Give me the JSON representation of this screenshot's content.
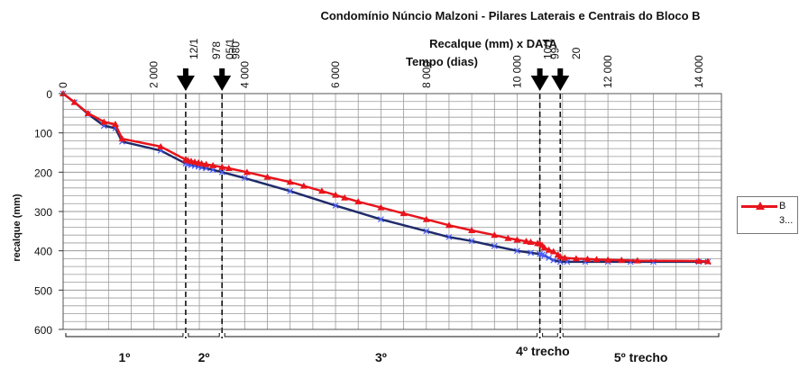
{
  "chart_data": {
    "type": "line",
    "title": "Condomínio Núncio Malzoni - Pilares Laterais e Centrais do Bloco B",
    "subtitle": "Recalque (mm) x DATA",
    "xlabel": "Tempo (dias)",
    "ylabel": "recalque (mm)",
    "xlim": [
      0,
      14500
    ],
    "ylim": [
      600,
      0
    ],
    "x_ticks": [
      "0",
      "2 000",
      "4 000",
      "6 000",
      "8 000",
      "10 000",
      "12 000",
      "14 000"
    ],
    "x_tick_values": [
      0,
      2000,
      4000,
      6000,
      8000,
      10000,
      12000,
      14000
    ],
    "y_ticks": [
      "0",
      "100",
      "200",
      "300",
      "400",
      "500",
      "600"
    ],
    "y_tick_values": [
      0,
      100,
      200,
      300,
      400,
      500,
      600
    ],
    "grid": true,
    "legend_placement": "right",
    "markers": [
      {
        "x": 2700,
        "date_label": "12/1",
        "year_label": ""
      },
      {
        "x": 3500,
        "date_label": "05/1",
        "year_label": "978"
      },
      {
        "x": 10500,
        "date_label": "10/1",
        "year_label": ""
      },
      {
        "x": 10950,
        "date_label": "",
        "year_label": "99"
      }
    ],
    "extra_top_labels": [
      {
        "x": 3800,
        "text": "980"
      },
      {
        "x": 11300,
        "text": "20"
      }
    ],
    "trechos": [
      {
        "label": "1º",
        "x_start": 0,
        "x_end": 2700
      },
      {
        "label": "2º",
        "x_start": 2700,
        "x_end": 3500
      },
      {
        "label": "3º",
        "x_start": 3500,
        "x_end": 10500
      },
      {
        "label": "4º trecho",
        "x_start": 10500,
        "x_end": 10950
      },
      {
        "label": "5º trecho",
        "x_start": 10950,
        "x_end": 14500
      }
    ],
    "series": [
      {
        "name": "B",
        "color": "#e8141c",
        "marker": "triangle",
        "x": [
          0,
          250,
          550,
          900,
          1150,
          1300,
          2150,
          2700,
          2750,
          2820,
          2900,
          2980,
          3050,
          3150,
          3300,
          3500,
          3650,
          4050,
          4500,
          5000,
          5300,
          5700,
          6000,
          6200,
          6500,
          7000,
          7500,
          8000,
          8500,
          9000,
          9500,
          9800,
          10000,
          10200,
          10300,
          10450,
          10500,
          10550,
          10600,
          10700,
          10800,
          10900,
          10950,
          11050,
          11300,
          11550,
          11750,
          12000,
          12300,
          12650,
          14000,
          14200
        ],
        "y": [
          0,
          22,
          50,
          72,
          78,
          115,
          135,
          168,
          170,
          172,
          174,
          176,
          178,
          180,
          183,
          187,
          190,
          200,
          212,
          225,
          235,
          248,
          258,
          265,
          275,
          290,
          305,
          320,
          335,
          348,
          360,
          368,
          372,
          376,
          378,
          381,
          382,
          386,
          392,
          398,
          402,
          410,
          415,
          418,
          420,
          421,
          422,
          423,
          424,
          425,
          426,
          427
        ]
      },
      {
        "name": "3...",
        "color": "#1f2b6b",
        "marker": "cross",
        "x": [
          0,
          250,
          550,
          900,
          1150,
          1300,
          2150,
          2700,
          2750,
          2820,
          2900,
          2980,
          3050,
          3150,
          3300,
          3500,
          4000,
          5000,
          6000,
          7000,
          8000,
          8500,
          9000,
          9500,
          10000,
          10300,
          10500,
          10550,
          10600,
          10700,
          10800,
          10950,
          11100,
          11500,
          12000,
          12500,
          13000,
          14000,
          14200
        ],
        "y": [
          0,
          22,
          52,
          82,
          88,
          122,
          145,
          178,
          180,
          182,
          184,
          186,
          188,
          190,
          194,
          200,
          215,
          248,
          285,
          320,
          350,
          365,
          375,
          388,
          400,
          405,
          408,
          410,
          412,
          418,
          424,
          428,
          428,
          428,
          428,
          428,
          428,
          428,
          428
        ]
      }
    ]
  },
  "legend": {
    "entries": [
      {
        "label": "B",
        "color": "#e8141c"
      },
      {
        "label": "3...",
        "color": "#1f2b6b"
      }
    ]
  }
}
